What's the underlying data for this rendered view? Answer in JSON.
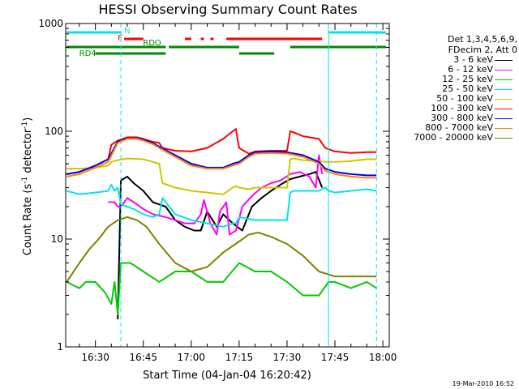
{
  "chart_data": {
    "type": "line",
    "title": "HESSI Observing Summary Count Rates",
    "xlabel": "Start Time (04-Jan-04 16:20:42)",
    "ylabel": "Count Rate (s⁻¹ detector⁻¹)",
    "ylabel_parts": {
      "main": "Count Rate (s",
      "sup1": "-1",
      "mid": " detector",
      "sup2": "-1",
      "end": ")"
    },
    "yscale": "log",
    "ylim": [
      1,
      1000
    ],
    "y_ticks": [
      1,
      10,
      100,
      1000
    ],
    "y_tick_labels": [
      "1",
      "10",
      "100",
      "1000"
    ],
    "xlim": [
      "16:20:42",
      "18:02"
    ],
    "x_ticks": [
      "16:30",
      "16:45",
      "17:00",
      "17:15",
      "17:30",
      "17:45",
      "18:00"
    ],
    "x_tick_labels": [
      "16:30",
      "16:45",
      "17:00",
      "17:15",
      "17:30",
      "17:45",
      "18:00"
    ],
    "grid": false,
    "legend_position": "right",
    "legend_header": [
      "Det 1,3,4,5,6,9,",
      "FDecim 2, Att 0"
    ],
    "series": [
      {
        "name": "3 - 6 keV",
        "color": "#000000",
        "x": [
          "16:37",
          "16:38",
          "16:40",
          "16:42",
          "16:45",
          "16:48",
          "16:52",
          "16:55",
          "16:58",
          "17:01",
          "17:03",
          "17:05",
          "17:08",
          "17:10",
          "17:13",
          "17:16",
          "17:19",
          "17:22",
          "17:25",
          "17:28",
          "17:31",
          "17:34",
          "17:37",
          "17:39",
          "17:41"
        ],
        "y": [
          1.8,
          35,
          38,
          33,
          28,
          22,
          20,
          15,
          13,
          12,
          12,
          18,
          13,
          17,
          14,
          12,
          20,
          24,
          28,
          32,
          36,
          38,
          40,
          42,
          30
        ]
      },
      {
        "name": "6 - 12 keV",
        "color": "#ff00ff",
        "x": [
          "16:34",
          "16:36",
          "16:37",
          "16:38",
          "16:40",
          "16:42",
          "16:45",
          "16:48",
          "16:52",
          "16:55",
          "16:58",
          "17:01",
          "17:03",
          "17:04",
          "17:06",
          "17:08",
          "17:09",
          "17:11",
          "17:12",
          "17:14",
          "17:16",
          "17:19",
          "17:22",
          "17:25",
          "17:28",
          "17:31",
          "17:34",
          "17:37",
          "17:39",
          "17:40",
          "17:41"
        ],
        "y": [
          22,
          22,
          20,
          20,
          24,
          22,
          19,
          17,
          16,
          15,
          14,
          14,
          17,
          23,
          14,
          11,
          18,
          22,
          11,
          12,
          20,
          25,
          30,
          33,
          35,
          40,
          42,
          38,
          30,
          60,
          40
        ]
      },
      {
        "name": "12 - 25 keV",
        "color": "#00cc00",
        "x": [
          "16:21",
          "16:25",
          "16:27",
          "16:30",
          "16:33",
          "16:35",
          "16:36",
          "16:37",
          "16:38",
          "16:41",
          "16:45",
          "16:50",
          "16:55",
          "17:00",
          "17:05",
          "17:10",
          "17:15",
          "17:20",
          "17:25",
          "17:30",
          "17:35",
          "17:40",
          "17:43",
          "17:45",
          "17:50",
          "17:55",
          "17:58"
        ],
        "y": [
          4,
          3.5,
          4,
          4,
          3.2,
          2.5,
          4,
          2,
          6,
          6,
          5,
          4,
          5,
          5,
          4,
          4,
          6,
          5,
          5,
          4,
          3,
          3,
          4,
          4,
          3.5,
          4,
          3.5
        ]
      },
      {
        "name": "25 - 50 keV",
        "color": "#00e5e5",
        "x": [
          "16:21",
          "16:25",
          "16:30",
          "16:34",
          "16:35",
          "16:36",
          "16:37",
          "16:38",
          "16:40",
          "16:42",
          "16:45",
          "16:48",
          "16:50",
          "16:51",
          "16:55",
          "17:00",
          "17:05",
          "17:10",
          "17:13",
          "17:14",
          "17:15",
          "17:20",
          "17:25",
          "17:30",
          "17:31",
          "17:32",
          "17:35",
          "17:40",
          "17:42",
          "17:43",
          "17:45",
          "17:50",
          "17:55",
          "17:58"
        ],
        "y": [
          28,
          26,
          27,
          28,
          32,
          28,
          30,
          21,
          20,
          19,
          17,
          16,
          17,
          24,
          17,
          15,
          14,
          13,
          14,
          14,
          16,
          15,
          15,
          15,
          27,
          28,
          28,
          28,
          30,
          28,
          27,
          28,
          29,
          28
        ]
      },
      {
        "name": "50 - 100 keV",
        "color": "#c8c800",
        "x": [
          "16:21",
          "16:25",
          "16:30",
          "16:34",
          "16:35",
          "16:37",
          "16:40",
          "16:45",
          "16:48",
          "16:50",
          "16:51",
          "16:55",
          "17:00",
          "17:05",
          "17:10",
          "17:13",
          "17:14",
          "17:15",
          "17:18",
          "17:20",
          "17:25",
          "17:30",
          "17:31",
          "17:32",
          "17:35",
          "17:40",
          "17:42",
          "17:45",
          "17:50",
          "17:55",
          "17:58"
        ],
        "y": [
          45,
          45,
          46,
          48,
          52,
          54,
          56,
          55,
          52,
          50,
          33,
          30,
          28,
          27,
          26,
          30,
          31,
          30,
          29,
          30,
          30,
          30,
          55,
          56,
          54,
          53,
          52,
          52,
          53,
          55,
          55
        ]
      },
      {
        "name": "100 - 300 keV",
        "color": "#ff0000",
        "x": [
          "16:21",
          "16:25",
          "16:30",
          "16:34",
          "16:35",
          "16:37",
          "16:40",
          "16:43",
          "16:45",
          "16:48",
          "16:50",
          "16:51",
          "16:55",
          "17:00",
          "17:05",
          "17:10",
          "17:13",
          "17:14",
          "17:15",
          "17:18",
          "17:20",
          "17:25",
          "17:30",
          "17:31",
          "17:32",
          "17:35",
          "17:40",
          "17:42",
          "17:45",
          "17:50",
          "17:55",
          "17:58"
        ],
        "y": [
          40,
          42,
          48,
          55,
          75,
          82,
          88,
          88,
          85,
          80,
          78,
          70,
          66,
          65,
          70,
          85,
          100,
          105,
          70,
          62,
          65,
          66,
          66,
          100,
          98,
          90,
          85,
          70,
          65,
          63,
          64,
          64
        ]
      },
      {
        "name": "300 - 800 keV",
        "color": "#0000ff",
        "x": [
          "16:21",
          "16:25",
          "16:30",
          "16:34",
          "16:37",
          "16:40",
          "16:43",
          "16:45",
          "16:48",
          "16:50",
          "16:55",
          "17:00",
          "17:05",
          "17:10",
          "17:13",
          "17:15",
          "17:18",
          "17:20",
          "17:25",
          "17:30",
          "17:35",
          "17:40",
          "17:42",
          "17:45",
          "17:50",
          "17:55",
          "17:58"
        ],
        "y": [
          40,
          42,
          48,
          55,
          80,
          86,
          86,
          84,
          78,
          72,
          60,
          50,
          46,
          46,
          50,
          52,
          60,
          64,
          65,
          64,
          60,
          52,
          45,
          42,
          40,
          39,
          39
        ]
      },
      {
        "name": "800 - 7000 keV",
        "color": "#ff8800",
        "x": [
          "16:21",
          "16:25",
          "16:30",
          "16:34",
          "16:37",
          "16:40",
          "16:43",
          "16:45",
          "16:48",
          "16:50",
          "16:55",
          "17:00",
          "17:05",
          "17:10",
          "17:13",
          "17:15",
          "17:18",
          "17:20",
          "17:25",
          "17:30",
          "17:35",
          "17:40",
          "17:42",
          "17:45",
          "17:50",
          "17:55",
          "17:58"
        ],
        "y": [
          38,
          40,
          46,
          52,
          78,
          85,
          85,
          82,
          76,
          70,
          58,
          48,
          45,
          45,
          48,
          50,
          58,
          62,
          63,
          62,
          58,
          50,
          43,
          40,
          38,
          37,
          37
        ]
      },
      {
        "name": "7000 - 20000 keV",
        "color": "#808000",
        "x": [
          "16:21",
          "16:25",
          "16:28",
          "16:31",
          "16:34",
          "16:37",
          "16:40",
          "16:43",
          "16:46",
          "16:50",
          "16:55",
          "17:00",
          "17:05",
          "17:10",
          "17:15",
          "17:18",
          "17:21",
          "17:25",
          "17:30",
          "17:35",
          "17:40",
          "17:45",
          "17:50",
          "17:55",
          "17:58"
        ],
        "y": [
          4,
          6,
          8,
          10,
          13,
          15,
          16,
          15,
          13,
          9,
          6,
          5,
          5.5,
          7.5,
          9.5,
          11,
          11.5,
          10.5,
          9,
          7,
          5,
          4.5,
          4.5,
          4.5,
          4.5
        ]
      }
    ],
    "attenuator_bars": [
      {
        "label": "N",
        "color": "#00e5e5",
        "row": 1,
        "segments": [
          [
            "16:21",
            "16:38"
          ],
          [
            "17:43",
            "18:01"
          ]
        ]
      },
      {
        "label": "F",
        "color": "#ff0000",
        "row": 2,
        "segments": [
          [
            "16:39",
            "16:45"
          ],
          [
            "16:58",
            "17:00"
          ],
          [
            "17:03",
            "17:04"
          ],
          [
            "17:06",
            "17:07"
          ],
          [
            "17:11",
            "17:41"
          ]
        ]
      },
      {
        "label": "RDO",
        "color": "#008800",
        "row": 3,
        "segments": [
          [
            "16:21",
            "16:52"
          ],
          [
            "16:53",
            "17:15"
          ],
          [
            "17:31",
            "18:01"
          ]
        ]
      },
      {
        "label": "RD4",
        "color": "#008800",
        "row": 4,
        "segments": [
          [
            "16:30",
            "16:52"
          ],
          [
            "17:15",
            "17:26"
          ]
        ]
      }
    ],
    "vertical_markers": [
      {
        "x": "16:38",
        "color": "#00e5e5",
        "style": "dashed"
      },
      {
        "x": "17:43",
        "color": "#00e5e5",
        "style": "solid"
      },
      {
        "x": "17:58",
        "color": "#00e5e5",
        "style": "dashed"
      }
    ]
  },
  "footer": "19-Mar-2010 16:52"
}
